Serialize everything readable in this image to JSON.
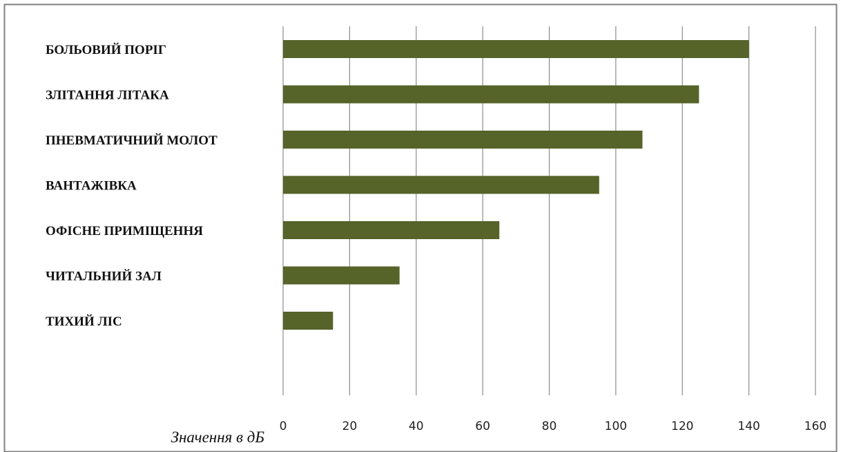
{
  "chart_data": {
    "type": "bar",
    "orientation": "horizontal",
    "categories": [
      "БОЛЬОВИЙ ПОРІГ",
      "ЗЛІТАННЯ ЛІТАКА",
      "ПНЕВМАТИЧНИЙ МОЛОТ",
      "ВАНТАЖІВКА",
      "ОФІСНЕ ПРИМІЩЕННЯ",
      "ЧИТАЛЬНИЙ ЗАЛ",
      "ТИХИЙ ЛІС"
    ],
    "values": [
      140,
      125,
      108,
      95,
      65,
      35,
      15
    ],
    "title": "",
    "xlabel": "Значення в дБ",
    "ylabel": "",
    "xlim": [
      0,
      160
    ],
    "xticks": [
      "0",
      "20",
      "40",
      "60",
      "80",
      "100",
      "120",
      "140",
      "160"
    ],
    "grid": "vertical",
    "legend": "none",
    "colors": {
      "bar": "#566329",
      "grid": "#8c8c8c",
      "frame": "#7f7f7f",
      "text": "#111111"
    }
  }
}
